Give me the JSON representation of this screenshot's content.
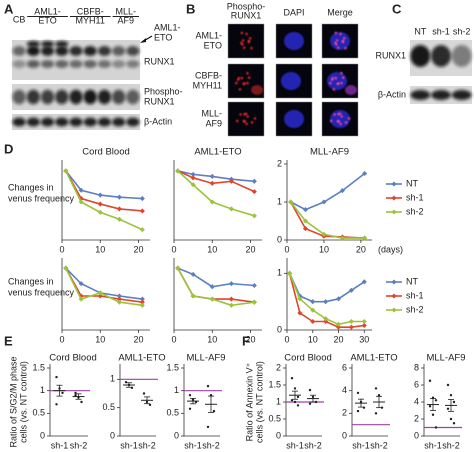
{
  "panels": {
    "A": {
      "label": "A",
      "lanes": [
        [
          "CB"
        ],
        [
          "AML1-",
          "ETO"
        ],
        [
          "CBFB-",
          "MYH11"
        ],
        [
          "MLL-",
          "AF9"
        ]
      ],
      "arrow_label": [
        "AML1-",
        "ETO"
      ],
      "bands": [
        "RUNX1",
        [
          "Phospho-",
          "RUNX1"
        ],
        "β-Actin"
      ]
    },
    "B": {
      "label": "B",
      "columns": [
        [
          "Phospho-",
          "RUNX1"
        ],
        [
          "DAPI"
        ],
        [
          "Merge"
        ]
      ],
      "rows": [
        [
          "AML1-",
          "ETO"
        ],
        [
          "CBFB-",
          "MYH11"
        ],
        [
          "MLL-",
          "AF9"
        ]
      ]
    },
    "C": {
      "label": "C",
      "lanes": [
        "NT",
        "sh-1",
        "sh-2"
      ],
      "bands": [
        "RUNX1",
        "β-Actin"
      ]
    },
    "D": {
      "label": "D"
    },
    "E": {
      "label": "E"
    },
    "F": {
      "label": "F"
    }
  },
  "chart_data": [
    {
      "type": "line",
      "title": "Cord Blood",
      "ylabel": [
        "Changes in",
        "venus frequency"
      ],
      "x": [
        1,
        5,
        10,
        15,
        21
      ],
      "xlim": [
        0,
        23
      ],
      "xticks": [
        0,
        10,
        20
      ],
      "ylim": [
        0,
        1.1
      ],
      "series": [
        {
          "color": "#5b7fc0",
          "values": [
            1,
            0.72,
            0.65,
            0.62,
            0.6
          ]
        },
        {
          "color": "#e0452e",
          "values": [
            1,
            0.6,
            0.52,
            0.45,
            0.42
          ]
        },
        {
          "color": "#9cc43a",
          "values": [
            1,
            0.55,
            0.4,
            0.3,
            0.15
          ]
        }
      ]
    },
    {
      "type": "line",
      "title": "AML1-ETO",
      "x": [
        1,
        5,
        10,
        15,
        21
      ],
      "xlim": [
        0,
        23
      ],
      "xticks": [
        0,
        10,
        20
      ],
      "ylim": [
        0,
        1.1
      ],
      "series": [
        {
          "color": "#5b7fc0",
          "values": [
            1,
            0.95,
            0.92,
            0.88,
            0.85
          ]
        },
        {
          "color": "#e0452e",
          "values": [
            1,
            0.9,
            0.82,
            0.85,
            0.7
          ]
        },
        {
          "color": "#9cc43a",
          "values": [
            1,
            0.8,
            0.55,
            0.45,
            0.35
          ]
        }
      ]
    },
    {
      "type": "line",
      "title": "MLL-AF9",
      "xlabel": "(days)",
      "x": [
        1,
        5,
        10,
        15,
        21
      ],
      "xlim": [
        0,
        23
      ],
      "xticks": [
        0,
        10,
        20
      ],
      "ylim": [
        0,
        2
      ],
      "yticks": [
        0,
        1,
        2
      ],
      "legend": true,
      "series": [
        {
          "name": "NT",
          "color": "#5b7fc0",
          "values": [
            1,
            0.8,
            1,
            1.3,
            1.75
          ]
        },
        {
          "name": "sh-1",
          "color": "#e0452e",
          "values": [
            1,
            0.3,
            0.1,
            0.08,
            0.05
          ]
        },
        {
          "name": "sh-2",
          "color": "#9cc43a",
          "values": [
            1,
            0.5,
            0.15,
            0.05,
            0.05
          ]
        }
      ]
    },
    {
      "type": "line",
      "ylabel": [
        "Changes in",
        "venus frequency"
      ],
      "x": [
        1,
        5,
        10,
        15,
        21
      ],
      "xlim": [
        0,
        23
      ],
      "xticks": [
        0,
        10,
        20
      ],
      "ylim": [
        0,
        1.1
      ],
      "series": [
        {
          "color": "#5b7fc0",
          "values": [
            1,
            0.75,
            0.6,
            0.55,
            0.5
          ]
        },
        {
          "color": "#e0452e",
          "values": [
            1,
            0.55,
            0.55,
            0.5,
            0.45
          ]
        },
        {
          "color": "#9cc43a",
          "values": [
            1,
            0.5,
            0.6,
            0.45,
            0.4
          ]
        }
      ]
    },
    {
      "type": "line",
      "x": [
        1,
        5,
        10,
        15,
        21
      ],
      "xlim": [
        0,
        23
      ],
      "xticks": [
        0,
        10,
        20
      ],
      "ylim": [
        0,
        1.1
      ],
      "series": [
        {
          "color": "#5b7fc0",
          "values": [
            1,
            0.9,
            0.7,
            0.75,
            0.72
          ]
        },
        {
          "color": "#e0452e",
          "values": [
            1,
            0.55,
            0.5,
            0.5,
            0.45
          ]
        },
        {
          "color": "#9cc43a",
          "values": [
            1,
            0.55,
            0.5,
            0.4,
            0.45
          ]
        }
      ]
    },
    {
      "type": "line",
      "x": [
        1,
        5,
        10,
        15,
        20,
        25,
        30
      ],
      "xlim": [
        0,
        33
      ],
      "xticks": [
        0,
        10,
        20,
        30
      ],
      "ylim": [
        0,
        1.2
      ],
      "yticks": [
        0,
        1
      ],
      "legend": true,
      "series": [
        {
          "name": "NT",
          "color": "#5b7fc0",
          "values": [
            1,
            0.6,
            0.5,
            0.5,
            0.55,
            0.7,
            0.85
          ]
        },
        {
          "name": "sh-1",
          "color": "#e0452e",
          "values": [
            1,
            0.3,
            0.15,
            0.15,
            0.05,
            0.05,
            0.08
          ]
        },
        {
          "name": "sh-2",
          "color": "#9cc43a",
          "values": [
            1,
            0.55,
            0.35,
            0.2,
            0.1,
            0.15,
            0.15
          ]
        }
      ]
    },
    {
      "type": "dot",
      "title": "Cord Blood",
      "ylabel": [
        "Ratio of S/G2/M phase",
        "cells (vs. NT control)"
      ],
      "categories": [
        "sh-1",
        "sh-2"
      ],
      "ylim": [
        0,
        1.5
      ],
      "yticks": [
        0,
        0.5,
        1,
        1.5
      ],
      "reference": 1,
      "reference_color": "#a040a8",
      "points": [
        [
          1.3,
          1.05,
          0.95,
          0.7
        ],
        [
          0.95,
          0.85,
          0.75,
          0.9
        ]
      ],
      "means": [
        1.0,
        0.87
      ],
      "errors": [
        0.12,
        0.06
      ]
    },
    {
      "type": "dot",
      "title": "AML1-ETO",
      "categories": [
        "sh-1",
        "sh-2"
      ],
      "ylim": [
        0,
        1.2
      ],
      "yticks": [
        0,
        0.5,
        1
      ],
      "reference": 1,
      "reference_color": "#a040a8",
      "points": [
        [
          0.95,
          0.9,
          0.85
        ],
        [
          0.75,
          0.6,
          0.55
        ]
      ],
      "means": [
        0.9,
        0.63
      ],
      "errors": [
        0.04,
        0.06
      ]
    },
    {
      "type": "dot",
      "title": "MLL-AF9",
      "categories": [
        "sh-1",
        "sh-2"
      ],
      "ylim": [
        0,
        1.5
      ],
      "yticks": [
        0,
        0.5,
        1,
        1.5
      ],
      "reference": 1,
      "reference_color": "#a040a8",
      "points": [
        [
          0.9,
          0.8,
          0.75,
          0.6
        ],
        [
          1.1,
          0.9,
          0.55,
          0.2
        ]
      ],
      "means": [
        0.77,
        0.7
      ],
      "errors": [
        0.06,
        0.18
      ]
    },
    {
      "type": "dot",
      "title": "Cord Blood",
      "ylabel": [
        "Ratio of Annexin V⁺",
        "cells (vs. NT control)"
      ],
      "categories": [
        "sh-1",
        "sh-2"
      ],
      "ylim": [
        0,
        2
      ],
      "yticks": [
        0,
        0.5,
        1,
        1.5,
        2
      ],
      "reference": 1,
      "reference_color": "#a040a8",
      "points": [
        [
          1.7,
          1.4,
          1.15,
          1.05,
          1.0,
          0.9
        ],
        [
          1.35,
          1.15,
          1.0,
          0.95
        ]
      ],
      "means": [
        1.2,
        1.1
      ],
      "errors": [
        0.12,
        0.1
      ]
    },
    {
      "type": "dot",
      "title": "AML1-ETO",
      "categories": [
        "sh-1",
        "sh-2"
      ],
      "ylim": [
        0,
        6
      ],
      "yticks": [
        0,
        2,
        4,
        6
      ],
      "reference": 1,
      "reference_color": "#a040a8",
      "points": [
        [
          3.8,
          3.0,
          2.5,
          2.2
        ],
        [
          4.2,
          3.6,
          2.5,
          2.0
        ]
      ],
      "means": [
        2.9,
        3.0
      ],
      "errors": [
        0.35,
        0.5
      ]
    },
    {
      "type": "dot",
      "title": "MLL-AF9",
      "categories": [
        "sh-1",
        "sh-2"
      ],
      "ylim": [
        0,
        8
      ],
      "yticks": [
        0,
        2,
        4,
        6,
        8
      ],
      "reference": 1,
      "reference_color": "#a040a8",
      "points": [
        [
          6.5,
          4.5,
          4.2,
          3.5,
          2.5,
          1
        ],
        [
          6,
          4.8,
          4,
          3.2,
          2,
          1.5
        ]
      ],
      "means": [
        3.7,
        3.6
      ],
      "errors": [
        0.7,
        0.7
      ]
    }
  ]
}
